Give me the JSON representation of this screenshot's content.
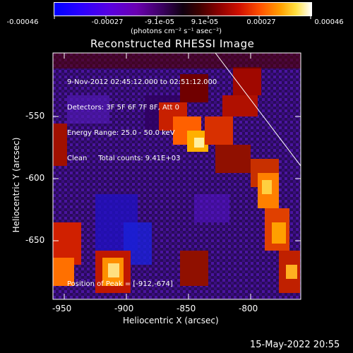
{
  "colorbar": {
    "tick_labels": [
      "-0.00046",
      "-0.00027",
      "-9.1e-05",
      "9.1e-05",
      "0.00027",
      "0.00046"
    ],
    "units": "(photons cm⁻² s⁻¹ asec⁻²)"
  },
  "plot": {
    "title": "Reconstructed RHESSI Image",
    "xlabel": "Heliocentric X (arcsec)",
    "ylabel": "Heliocentric Y (arcsec)",
    "x_ticks": [
      "-950",
      "-900",
      "-850",
      "-800"
    ],
    "y_ticks": [
      "-550",
      "-600",
      "-650"
    ]
  },
  "info": {
    "line1": "9-Nov-2012 02:45:12.000 to 02:51:12.000",
    "line2": "Detectors: 3F 5F 6F 7F 8F, Att 0",
    "line3": "Energy Range: 25.0 - 50.0 keV",
    "line4": "Clean     Total counts: 9.41E+03"
  },
  "peak_label": "Position of Peak = [-912,-674]",
  "footer_date": "15-May-2022 20:55"
}
